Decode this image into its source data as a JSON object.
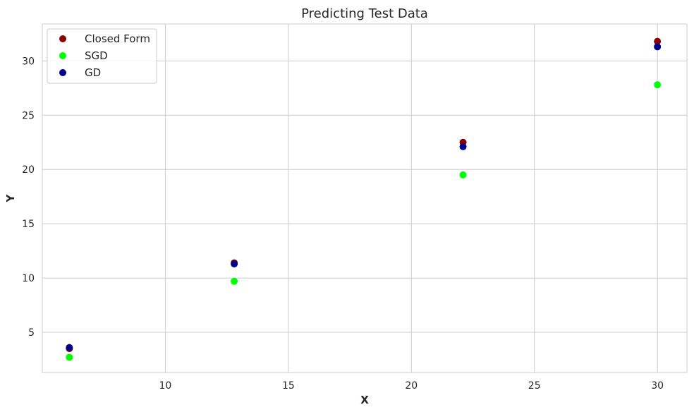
{
  "chart_data": {
    "type": "scatter",
    "title": "Predicting Test Data",
    "xlabel": "X",
    "ylabel": "Y",
    "xlim": [
      5.0,
      31.2
    ],
    "ylim": [
      1.3,
      33.4
    ],
    "xticks": [
      10,
      15,
      20,
      25,
      30
    ],
    "yticks": [
      5,
      10,
      15,
      20,
      25,
      30
    ],
    "grid": true,
    "legend_position": "top-left",
    "series": [
      {
        "name": "Closed Form",
        "color": "#8b0000",
        "points": [
          [
            6.1,
            3.5
          ],
          [
            12.8,
            11.4
          ],
          [
            22.1,
            22.5
          ],
          [
            30.0,
            31.8
          ]
        ]
      },
      {
        "name": "SGD",
        "color": "#00ff00",
        "points": [
          [
            6.1,
            2.7
          ],
          [
            12.8,
            9.7
          ],
          [
            22.1,
            19.5
          ],
          [
            30.0,
            27.8
          ]
        ]
      },
      {
        "name": "GD",
        "color": "#00008b",
        "points": [
          [
            6.1,
            3.6
          ],
          [
            12.8,
            11.3
          ],
          [
            22.1,
            22.1
          ],
          [
            30.0,
            31.3
          ]
        ]
      }
    ]
  }
}
